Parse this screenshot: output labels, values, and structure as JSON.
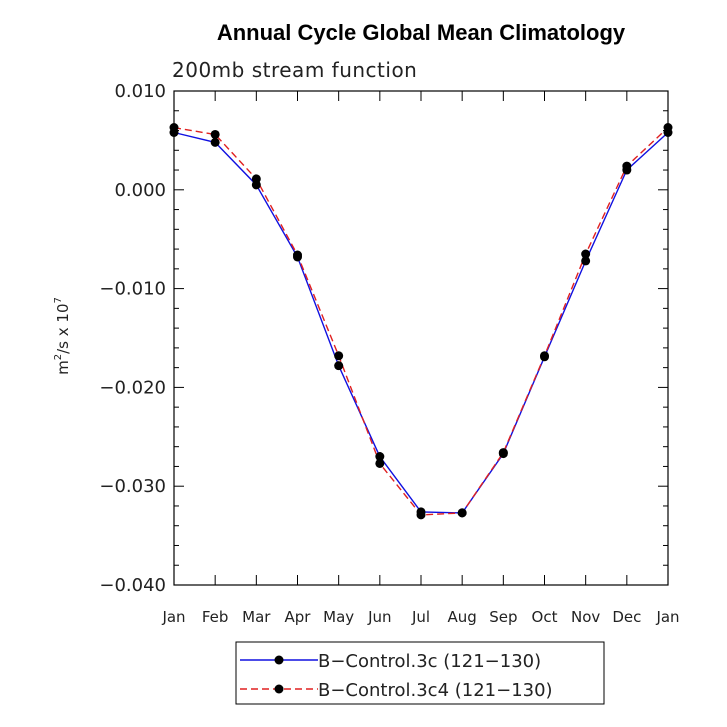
{
  "chart_data": {
    "type": "line",
    "title": "Annual Cycle Global Mean Climatology",
    "subtitle": "200mb stream function",
    "ylabel_base": "m",
    "ylabel_sup1": "2",
    "ylabel_mid": "/s x 10",
    "ylabel_sup2": "7",
    "xlabel": "",
    "categories": [
      "Jan",
      "Feb",
      "Mar",
      "Apr",
      "May",
      "Jun",
      "Jul",
      "Aug",
      "Sep",
      "Oct",
      "Nov",
      "Dec",
      "Jan"
    ],
    "ylim": [
      -0.04,
      0.01
    ],
    "yticks": [
      0.01,
      0.0,
      -0.01,
      -0.02,
      -0.03,
      -0.04
    ],
    "ytick_labels": [
      "0.010",
      "0.000",
      "−0.010",
      "−0.020",
      "−0.030",
      "−0.040"
    ],
    "legend_placement": "bottom-center",
    "series": [
      {
        "name": "B−Control.3c (121−130)",
        "color": "#1010e0",
        "dash": "solid",
        "values": [
          0.0058,
          0.0048,
          0.0005,
          -0.0068,
          -0.0178,
          -0.027,
          -0.0326,
          -0.0327,
          -0.0267,
          -0.0169,
          -0.0072,
          0.002,
          0.0058
        ]
      },
      {
        "name": "B−Control.3c4 (121−130)",
        "color": "#e02020",
        "dash": "dashed",
        "values": [
          0.0063,
          0.0056,
          0.0011,
          -0.0066,
          -0.0168,
          -0.0277,
          -0.0329,
          -0.0327,
          -0.0266,
          -0.0168,
          -0.0065,
          0.0024,
          0.0063
        ]
      }
    ]
  }
}
